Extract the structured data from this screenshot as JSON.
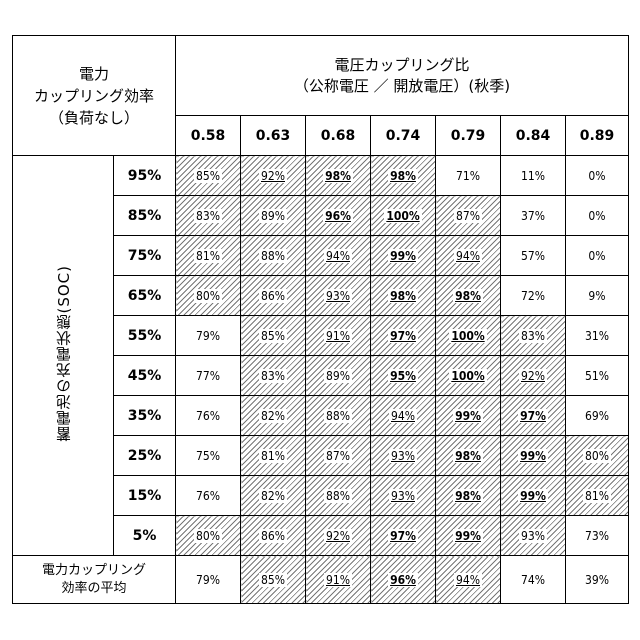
{
  "corner_label": [
    "電力",
    "カップリング効率",
    "（負荷なし）"
  ],
  "header": {
    "title_line1": "電圧カップリング比",
    "title_line2": "（公称電圧 ／ 開放電圧）(秋季)"
  },
  "voltage_ratios": [
    "0.58",
    "0.63",
    "0.68",
    "0.74",
    "0.79",
    "0.84",
    "0.89"
  ],
  "soc_axis_label": "蓄電池の充電状態(SOC)",
  "rows": [
    {
      "soc": "95%",
      "cells": [
        {
          "v": "85%",
          "hatch": true
        },
        {
          "v": "92%",
          "hatch": true,
          "u": true
        },
        {
          "v": "98%",
          "hatch": true,
          "u": true,
          "b": true
        },
        {
          "v": "98%",
          "hatch": true,
          "u": true,
          "b": true
        },
        {
          "v": "71%"
        },
        {
          "v": "11%"
        },
        {
          "v": "0%"
        }
      ]
    },
    {
      "soc": "85%",
      "cells": [
        {
          "v": "83%",
          "hatch": true
        },
        {
          "v": "89%",
          "hatch": true
        },
        {
          "v": "96%",
          "hatch": true,
          "u": true,
          "b": true
        },
        {
          "v": "100%",
          "hatch": true,
          "u": true,
          "b": true
        },
        {
          "v": "87%",
          "hatch": true
        },
        {
          "v": "37%"
        },
        {
          "v": "0%"
        }
      ]
    },
    {
      "soc": "75%",
      "cells": [
        {
          "v": "81%",
          "hatch": true
        },
        {
          "v": "88%",
          "hatch": true
        },
        {
          "v": "94%",
          "hatch": true,
          "u": true
        },
        {
          "v": "99%",
          "hatch": true,
          "u": true,
          "b": true
        },
        {
          "v": "94%",
          "hatch": true,
          "u": true
        },
        {
          "v": "57%"
        },
        {
          "v": "0%"
        }
      ]
    },
    {
      "soc": "65%",
      "cells": [
        {
          "v": "80%",
          "hatch": true
        },
        {
          "v": "86%",
          "hatch": true
        },
        {
          "v": "93%",
          "hatch": true,
          "u": true
        },
        {
          "v": "98%",
          "hatch": true,
          "u": true,
          "b": true
        },
        {
          "v": "98%",
          "hatch": true,
          "u": true,
          "b": true
        },
        {
          "v": "72%"
        },
        {
          "v": "9%"
        }
      ]
    },
    {
      "soc": "55%",
      "cells": [
        {
          "v": "79%"
        },
        {
          "v": "85%",
          "hatch": true
        },
        {
          "v": "91%",
          "hatch": true,
          "u": true
        },
        {
          "v": "97%",
          "hatch": true,
          "u": true,
          "b": true
        },
        {
          "v": "100%",
          "hatch": true,
          "u": true,
          "b": true
        },
        {
          "v": "83%",
          "hatch": true
        },
        {
          "v": "31%"
        }
      ]
    },
    {
      "soc": "45%",
      "cells": [
        {
          "v": "77%"
        },
        {
          "v": "83%",
          "hatch": true
        },
        {
          "v": "89%",
          "hatch": true
        },
        {
          "v": "95%",
          "hatch": true,
          "u": true,
          "b": true
        },
        {
          "v": "100%",
          "hatch": true,
          "u": true,
          "b": true
        },
        {
          "v": "92%",
          "hatch": true,
          "u": true
        },
        {
          "v": "51%"
        }
      ]
    },
    {
      "soc": "35%",
      "cells": [
        {
          "v": "76%"
        },
        {
          "v": "82%",
          "hatch": true
        },
        {
          "v": "88%",
          "hatch": true
        },
        {
          "v": "94%",
          "hatch": true,
          "u": true
        },
        {
          "v": "99%",
          "hatch": true,
          "u": true,
          "b": true
        },
        {
          "v": "97%",
          "hatch": true,
          "u": true,
          "b": true
        },
        {
          "v": "69%"
        }
      ]
    },
    {
      "soc": "25%",
      "cells": [
        {
          "v": "75%"
        },
        {
          "v": "81%",
          "hatch": true
        },
        {
          "v": "87%",
          "hatch": true
        },
        {
          "v": "93%",
          "hatch": true,
          "u": true
        },
        {
          "v": "98%",
          "hatch": true,
          "u": true,
          "b": true
        },
        {
          "v": "99%",
          "hatch": true,
          "u": true,
          "b": true
        },
        {
          "v": "80%",
          "hatch": true
        }
      ]
    },
    {
      "soc": "15%",
      "cells": [
        {
          "v": "76%"
        },
        {
          "v": "82%",
          "hatch": true
        },
        {
          "v": "88%",
          "hatch": true
        },
        {
          "v": "93%",
          "hatch": true,
          "u": true
        },
        {
          "v": "98%",
          "hatch": true,
          "u": true,
          "b": true
        },
        {
          "v": "99%",
          "hatch": true,
          "u": true,
          "b": true
        },
        {
          "v": "81%",
          "hatch": true
        }
      ]
    },
    {
      "soc": "5%",
      "cells": [
        {
          "v": "80%",
          "hatch": true
        },
        {
          "v": "86%",
          "hatch": true
        },
        {
          "v": "92%",
          "hatch": true,
          "u": true
        },
        {
          "v": "97%",
          "hatch": true,
          "u": true,
          "b": true
        },
        {
          "v": "99%",
          "hatch": true,
          "u": true,
          "b": true
        },
        {
          "v": "93%",
          "hatch": true
        },
        {
          "v": "73%"
        }
      ]
    }
  ],
  "average": {
    "label": [
      "電力カップリング",
      "効率の平均"
    ],
    "cells": [
      {
        "v": "79%"
      },
      {
        "v": "85%",
        "hatch": true
      },
      {
        "v": "91%",
        "hatch": true,
        "u": true
      },
      {
        "v": "96%",
        "hatch": true,
        "u": true,
        "b": true
      },
      {
        "v": "94%",
        "hatch": true,
        "u": true
      },
      {
        "v": "74%"
      },
      {
        "v": "39%"
      }
    ]
  }
}
